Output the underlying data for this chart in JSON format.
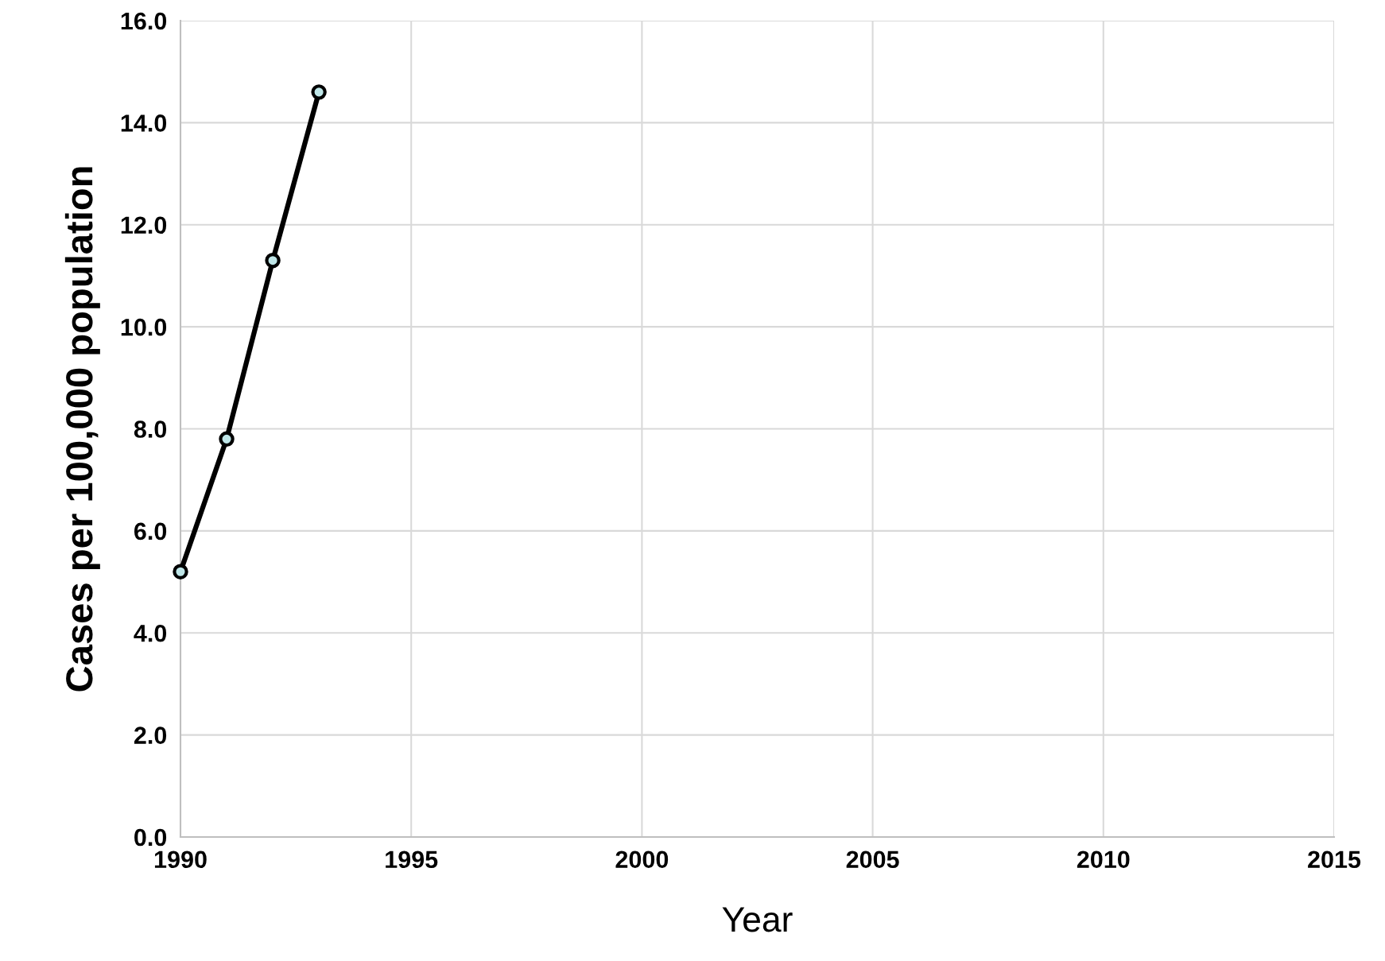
{
  "chart_data": {
    "type": "line",
    "xlabel": "Year",
    "ylabel": "Cases per 100,000 population",
    "x": [
      1990,
      1991,
      1992,
      1993
    ],
    "series": [
      {
        "color": "#000000",
        "values": [
          5.2,
          7.8,
          11.3,
          14.6
        ]
      }
    ],
    "marker": "circle",
    "line_style": "solid",
    "grid": true,
    "xlim": [
      1990,
      2015
    ],
    "xticks": [
      1990,
      1995,
      2000,
      2005,
      2010,
      2015
    ],
    "ylim": [
      0,
      16
    ],
    "yticks": [
      {
        "value": 0,
        "label": "0.0"
      },
      {
        "value": 2,
        "label": "2.0"
      },
      {
        "value": 4,
        "label": "4.0"
      },
      {
        "value": 6,
        "label": "6.0"
      },
      {
        "value": 8,
        "label": "8.0"
      },
      {
        "value": 10,
        "label": "10.0"
      },
      {
        "value": 12,
        "label": "12.0"
      },
      {
        "value": 14,
        "label": "14.0"
      },
      {
        "value": 16,
        "label": "16.0"
      }
    ]
  }
}
